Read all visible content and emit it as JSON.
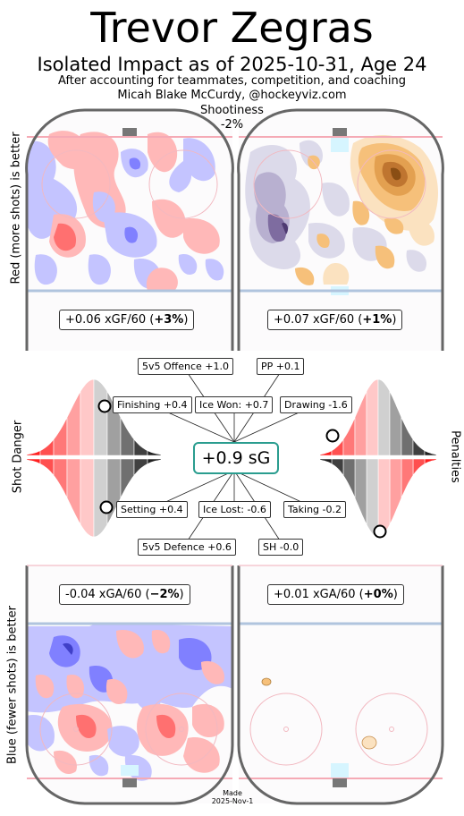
{
  "header": {
    "title": "Trevor Zegras",
    "subtitle": "Isolated Impact as of 2025-10-31, Age 24",
    "credit_line1": "After accounting for teammates, competition, and coaching",
    "credit_line2": "Micah Blake McCurdy, @hockeyviz.com",
    "shootiness_label": "Shootiness",
    "shootiness_value": "-2%"
  },
  "side_labels": {
    "top_left": "Red (more shots) is better",
    "mid_left": "Shot Danger",
    "mid_right": "Penalties",
    "bottom_left": "Blue (fewer shots) is better"
  },
  "rinks": {
    "offence_5v5": {
      "prefix": "+0.06 xGF/60 (",
      "bold": "+3%",
      "suffix": ")"
    },
    "offence_pp": {
      "prefix": "+0.07 xGF/60 (",
      "bold": "+1%",
      "suffix": ")"
    },
    "defence_5v5": {
      "prefix": "-0.04 xGA/60 (",
      "bold": "−2%",
      "suffix": ")"
    },
    "defence_sh": {
      "prefix": "+0.01 xGA/60 (",
      "bold": "+0%",
      "suffix": ")"
    }
  },
  "chart_data": {
    "type": "table",
    "total": {
      "label": "+0.9 sG",
      "value": 0.9
    },
    "components": [
      {
        "label": "5v5 Offence +1.0",
        "name": "5v5 Offence",
        "value": 1.0
      },
      {
        "label": "PP +0.1",
        "name": "PP",
        "value": 0.1
      },
      {
        "label": "Finishing +0.4",
        "name": "Finishing",
        "value": 0.4
      },
      {
        "label": "Ice Won: +0.7",
        "name": "Ice Won",
        "value": 0.7
      },
      {
        "label": "Drawing -1.6",
        "name": "Drawing",
        "value": -1.6
      },
      {
        "label": "Setting +0.4",
        "name": "Setting",
        "value": 0.4
      },
      {
        "label": "Ice Lost: -0.6",
        "name": "Ice Lost",
        "value": -0.6
      },
      {
        "label": "Taking -0.2",
        "name": "Taking",
        "value": -0.2
      },
      {
        "label": "5v5 Defence +0.6",
        "name": "5v5 Defence",
        "value": 0.6
      },
      {
        "label": "SH -0.0",
        "name": "SH",
        "value": -0.0
      }
    ],
    "distributions": {
      "shot_danger_finishing_percentile": 0.64,
      "shot_danger_setting_percentile": 0.64,
      "penalties_drawing_percentile": 0.16,
      "penalties_taking_percentile": 0.44
    }
  },
  "footer": {
    "made_line1": "Made",
    "made_line2": "2025-Nov-1"
  },
  "colors": {
    "red_fill": "#ffb8b8",
    "red_dark": "#ff5a5a",
    "blue_fill": "#c4c4ff",
    "blue_dark": "#8080ff",
    "purple": "#b8b0d0",
    "orange": "#f6c07a",
    "teal": "#2a9d8f",
    "rink_border": "#666666",
    "blue_line": "#b0c4de",
    "goal_line": "#f5aab5"
  }
}
